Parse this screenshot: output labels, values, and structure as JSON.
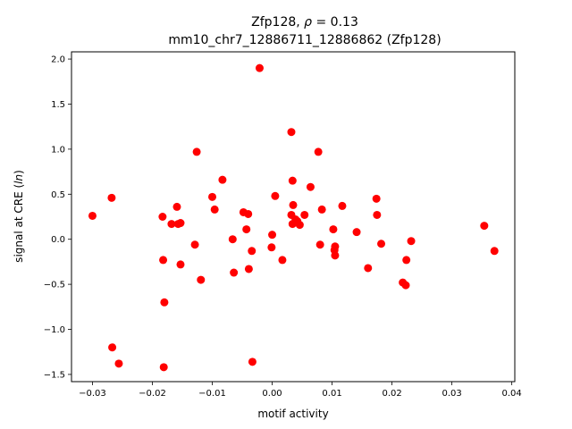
{
  "chart_data": {
    "type": "scatter",
    "title_line1_prefix": "Zfp128, ",
    "title_line1_rho_symbol": "ρ",
    "title_line1_rho_value": " = 0.13",
    "title_line2": "mm10_chr7_12886711_12886862 (Zfp128)",
    "xlabel": "motif activity",
    "ylabel_prefix": "signal at CRE (",
    "ylabel_italic": "ln",
    "ylabel_suffix": ")",
    "xlim": [
      -0.0335,
      0.0405
    ],
    "ylim": [
      -1.58,
      2.08
    ],
    "x_ticks": [
      -0.03,
      -0.02,
      -0.01,
      0.0,
      0.01,
      0.02,
      0.03,
      0.04
    ],
    "x_tick_labels": [
      "−0.03",
      "−0.02",
      "−0.01",
      "0.00",
      "0.01",
      "0.02",
      "0.03",
      "0.04"
    ],
    "y_ticks": [
      -1.5,
      -1.0,
      -0.5,
      0.0,
      0.5,
      1.0,
      1.5,
      2.0
    ],
    "y_tick_labels": [
      "−1.5",
      "−1.0",
      "−0.5",
      "0.0",
      "0.5",
      "1.0",
      "1.5",
      "2.0"
    ],
    "grid": false,
    "point_color": "#ff0000",
    "points": [
      [
        -0.03,
        0.26
      ],
      [
        -0.0268,
        0.46
      ],
      [
        -0.0267,
        -1.2
      ],
      [
        -0.0256,
        -1.38
      ],
      [
        -0.0183,
        0.25
      ],
      [
        -0.0182,
        -0.23
      ],
      [
        -0.018,
        -0.7
      ],
      [
        -0.0181,
        -1.42
      ],
      [
        -0.0168,
        0.17
      ],
      [
        -0.0159,
        0.36
      ],
      [
        -0.0157,
        0.17
      ],
      [
        -0.0153,
        0.18
      ],
      [
        -0.0153,
        -0.28
      ],
      [
        -0.0129,
        -0.06
      ],
      [
        -0.0126,
        0.97
      ],
      [
        -0.0119,
        -0.45
      ],
      [
        -0.01,
        0.47
      ],
      [
        -0.0096,
        0.33
      ],
      [
        -0.0083,
        0.66
      ],
      [
        -0.0066,
        0.0
      ],
      [
        -0.0064,
        -0.37
      ],
      [
        -0.0048,
        0.3
      ],
      [
        -0.0043,
        0.11
      ],
      [
        -0.004,
        0.28
      ],
      [
        -0.0039,
        -0.33
      ],
      [
        -0.0033,
        -1.36
      ],
      [
        -0.0034,
        -0.13
      ],
      [
        -0.0021,
        1.9
      ],
      [
        -0.0001,
        -0.09
      ],
      [
        0.0,
        0.05
      ],
      [
        0.0005,
        0.48
      ],
      [
        0.0017,
        -0.23
      ],
      [
        0.0032,
        1.19
      ],
      [
        0.0032,
        0.27
      ],
      [
        0.0034,
        0.65
      ],
      [
        0.0034,
        0.17
      ],
      [
        0.0035,
        0.38
      ],
      [
        0.0039,
        0.22
      ],
      [
        0.0042,
        0.2
      ],
      [
        0.0046,
        0.16
      ],
      [
        0.0054,
        0.27
      ],
      [
        0.0064,
        0.58
      ],
      [
        0.0077,
        0.97
      ],
      [
        0.008,
        -0.06
      ],
      [
        0.0083,
        0.33
      ],
      [
        0.0102,
        0.11
      ],
      [
        0.0104,
        -0.12
      ],
      [
        0.0105,
        -0.08
      ],
      [
        0.0105,
        -0.18
      ],
      [
        0.0117,
        0.37
      ],
      [
        0.0141,
        0.08
      ],
      [
        0.016,
        -0.32
      ],
      [
        0.0174,
        0.45
      ],
      [
        0.0175,
        0.27
      ],
      [
        0.0182,
        -0.05
      ],
      [
        0.0218,
        -0.48
      ],
      [
        0.0223,
        -0.51
      ],
      [
        0.0224,
        -0.23
      ],
      [
        0.0232,
        -0.02
      ],
      [
        0.0354,
        0.15
      ],
      [
        0.0371,
        -0.13
      ]
    ]
  }
}
